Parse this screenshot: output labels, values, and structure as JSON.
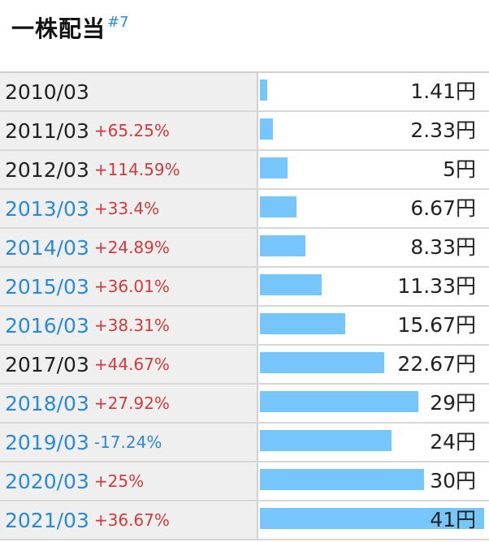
{
  "title": "一株配当",
  "footnote": "#7",
  "rows": [
    {
      "year": "2010/03",
      "change": "",
      "value": "1.41円",
      "link": false
    },
    {
      "year": "2011/03",
      "change": "+65.25%",
      "value": "2.33円",
      "link": false
    },
    {
      "year": "2012/03",
      "change": "+114.59%",
      "value": "5円",
      "link": false
    },
    {
      "year": "2013/03",
      "change": "+33.4%",
      "value": "6.67円",
      "link": true
    },
    {
      "year": "2014/03",
      "change": "+24.89%",
      "value": "8.33円",
      "link": true
    },
    {
      "year": "2015/03",
      "change": "+36.01%",
      "value": "11.33円",
      "link": true
    },
    {
      "year": "2016/03",
      "change": "+38.31%",
      "value": "15.67円",
      "link": true
    },
    {
      "year": "2017/03",
      "change": "+44.67%",
      "value": "22.67円",
      "link": false
    },
    {
      "year": "2018/03",
      "change": "+27.92%",
      "value": "29円",
      "link": true
    },
    {
      "year": "2019/03",
      "change": "-17.24%",
      "value": "24円",
      "link": true
    },
    {
      "year": "2020/03",
      "change": "+25%",
      "value": "30円",
      "link": true
    },
    {
      "year": "2021/03",
      "change": "+36.67%",
      "value": "41円",
      "link": true
    }
  ],
  "colors": {
    "bar": "#76c6fb",
    "positive": "#d23a3a",
    "negative": "#2a8ad4",
    "link": "#2a8ad4"
  },
  "chart_data": {
    "type": "bar",
    "orientation": "horizontal",
    "title": "一株配当",
    "categories": [
      "2010/03",
      "2011/03",
      "2012/03",
      "2013/03",
      "2014/03",
      "2015/03",
      "2016/03",
      "2017/03",
      "2018/03",
      "2019/03",
      "2020/03",
      "2021/03"
    ],
    "values": [
      1.41,
      2.33,
      5,
      6.67,
      8.33,
      11.33,
      15.67,
      22.67,
      29,
      24,
      30,
      41
    ],
    "unit": "円",
    "xlim": [
      0,
      41
    ]
  }
}
